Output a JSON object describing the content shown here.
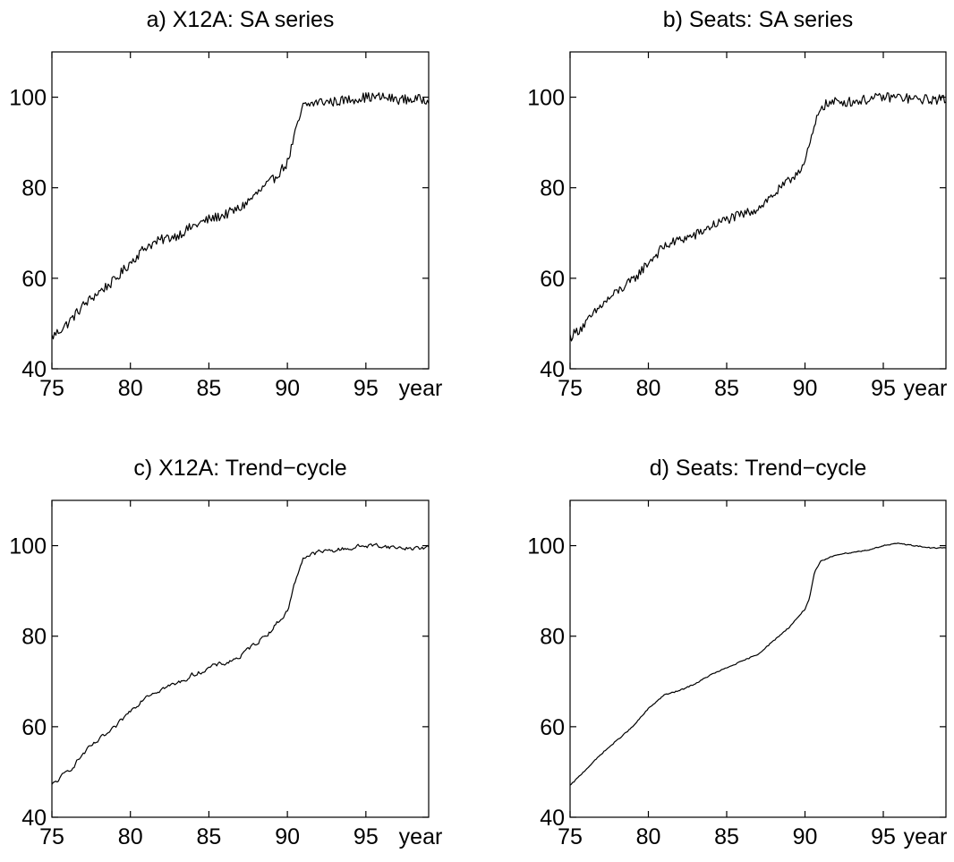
{
  "chart_data": [
    {
      "type": "line",
      "title": "a) X12A: SA series",
      "xlabel": "year",
      "ylabel": "",
      "xlim": [
        75,
        99
      ],
      "ylim": [
        40,
        110
      ],
      "xticks": [
        75,
        80,
        85,
        90,
        95
      ],
      "yticks": [
        40,
        60,
        80,
        100
      ],
      "grid": false,
      "series": [
        {
          "noise": "high",
          "x": [
            75,
            76,
            77,
            78,
            79,
            80,
            81,
            82,
            83,
            84,
            85,
            86,
            87,
            88,
            89,
            90,
            90.5,
            91,
            92,
            93,
            94,
            95,
            96,
            97,
            98,
            99
          ],
          "y": [
            47,
            50,
            54,
            57,
            59.5,
            63.5,
            67,
            68.5,
            69.5,
            71.5,
            73,
            74,
            75.5,
            78.5,
            81.5,
            85.5,
            92,
            98,
            99,
            99,
            99.5,
            100,
            100,
            99.5,
            99.5,
            99.5
          ]
        }
      ]
    },
    {
      "type": "line",
      "title": "b) Seats: SA series",
      "xlabel": "year",
      "ylabel": "",
      "xlim": [
        75,
        99
      ],
      "ylim": [
        40,
        110
      ],
      "xticks": [
        75,
        80,
        85,
        90,
        95
      ],
      "yticks": [
        40,
        60,
        80,
        100
      ],
      "grid": false,
      "series": [
        {
          "noise": "high",
          "x": [
            75,
            76,
            77,
            78,
            79,
            80,
            81,
            82,
            83,
            84,
            85,
            86,
            87,
            88,
            89,
            90,
            90.5,
            91,
            92,
            93,
            94,
            95,
            96,
            97,
            98,
            99
          ],
          "y": [
            47,
            50,
            54,
            57,
            59.5,
            63.5,
            67,
            68.5,
            69.5,
            71.5,
            73,
            74,
            75.5,
            78.5,
            81.5,
            85.5,
            92,
            98,
            99,
            99,
            99.5,
            100,
            100,
            99.5,
            99.5,
            99.5
          ]
        }
      ]
    },
    {
      "type": "line",
      "title": "c) X12A: Trend−cycle",
      "xlabel": "year",
      "ylabel": "",
      "xlim": [
        75,
        99
      ],
      "ylim": [
        40,
        110
      ],
      "xticks": [
        75,
        80,
        85,
        90,
        95
      ],
      "yticks": [
        40,
        60,
        80,
        100
      ],
      "grid": false,
      "series": [
        {
          "noise": "medium",
          "x": [
            75,
            76,
            77,
            78,
            79,
            80,
            81,
            82,
            83,
            84,
            85,
            86,
            87,
            88,
            89,
            90,
            90.5,
            91,
            92,
            93,
            94,
            95,
            96,
            97,
            98,
            99
          ],
          "y": [
            47,
            50,
            54,
            57,
            59.5,
            63.5,
            67,
            68.5,
            69.5,
            71.5,
            73,
            74,
            75.5,
            78.5,
            81.5,
            85.5,
            92,
            97.5,
            98.5,
            99,
            99.5,
            100,
            100,
            99.5,
            99.5,
            99.5
          ]
        }
      ]
    },
    {
      "type": "line",
      "title": "d) Seats: Trend−cycle",
      "xlabel": "year",
      "ylabel": "",
      "xlim": [
        75,
        99
      ],
      "ylim": [
        40,
        110
      ],
      "xticks": [
        75,
        80,
        85,
        90,
        95
      ],
      "yticks": [
        40,
        60,
        80,
        100
      ],
      "grid": false,
      "series": [
        {
          "noise": "low",
          "x": [
            75,
            76,
            77,
            78,
            79,
            80,
            81,
            82,
            83,
            84,
            85,
            86,
            87,
            88,
            89,
            90,
            90.3,
            90.6,
            91,
            92,
            93,
            94,
            95,
            96,
            97,
            98,
            99
          ],
          "y": [
            47,
            50.5,
            54,
            57,
            60,
            64,
            67,
            68,
            69.5,
            71.5,
            73,
            74.5,
            76,
            79,
            82,
            86,
            88.5,
            94,
            96.5,
            98,
            98.5,
            99,
            100,
            100.5,
            100,
            99.5,
            99.5
          ]
        }
      ]
    }
  ]
}
